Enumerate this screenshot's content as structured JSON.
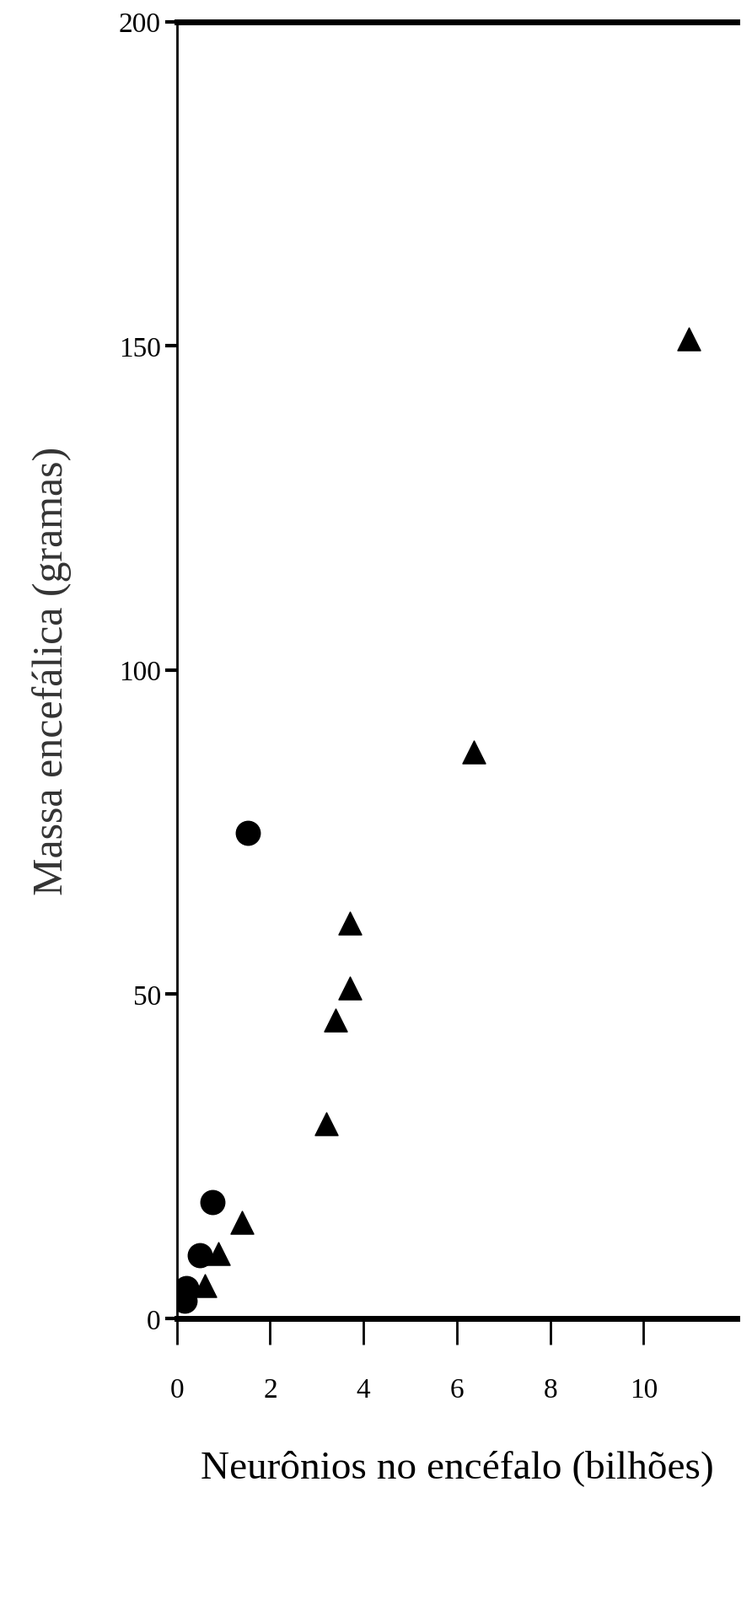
{
  "chart_data": {
    "type": "scatter",
    "x_label": "Neurônios no encéfalo (bilhões)",
    "y_label": "Massa encefálica (gramas)",
    "series": [
      {
        "color": "#000000",
        "marker": "circle",
        "x": [
          0.17,
          0.2,
          0.5,
          0.76,
          1.52
        ],
        "values": [
          2.7,
          4.7,
          9.7,
          17.9,
          74.9
        ]
      },
      {
        "color": "#000000",
        "marker": "triangle",
        "x": [
          0.6,
          0.9,
          1.4,
          3.2,
          3.4,
          3.7,
          3.7,
          6.37,
          10.96
        ],
        "values": [
          5,
          10,
          14.8,
          30,
          46,
          51,
          61,
          87.4,
          151
        ]
      }
    ],
    "xlim": [
      0,
      12
    ],
    "xticks": [
      0,
      2,
      4,
      6,
      8,
      10
    ],
    "ylim": [
      0,
      200
    ],
    "yticks": [
      0,
      50,
      100,
      150,
      200
    ],
    "grid": false
  }
}
